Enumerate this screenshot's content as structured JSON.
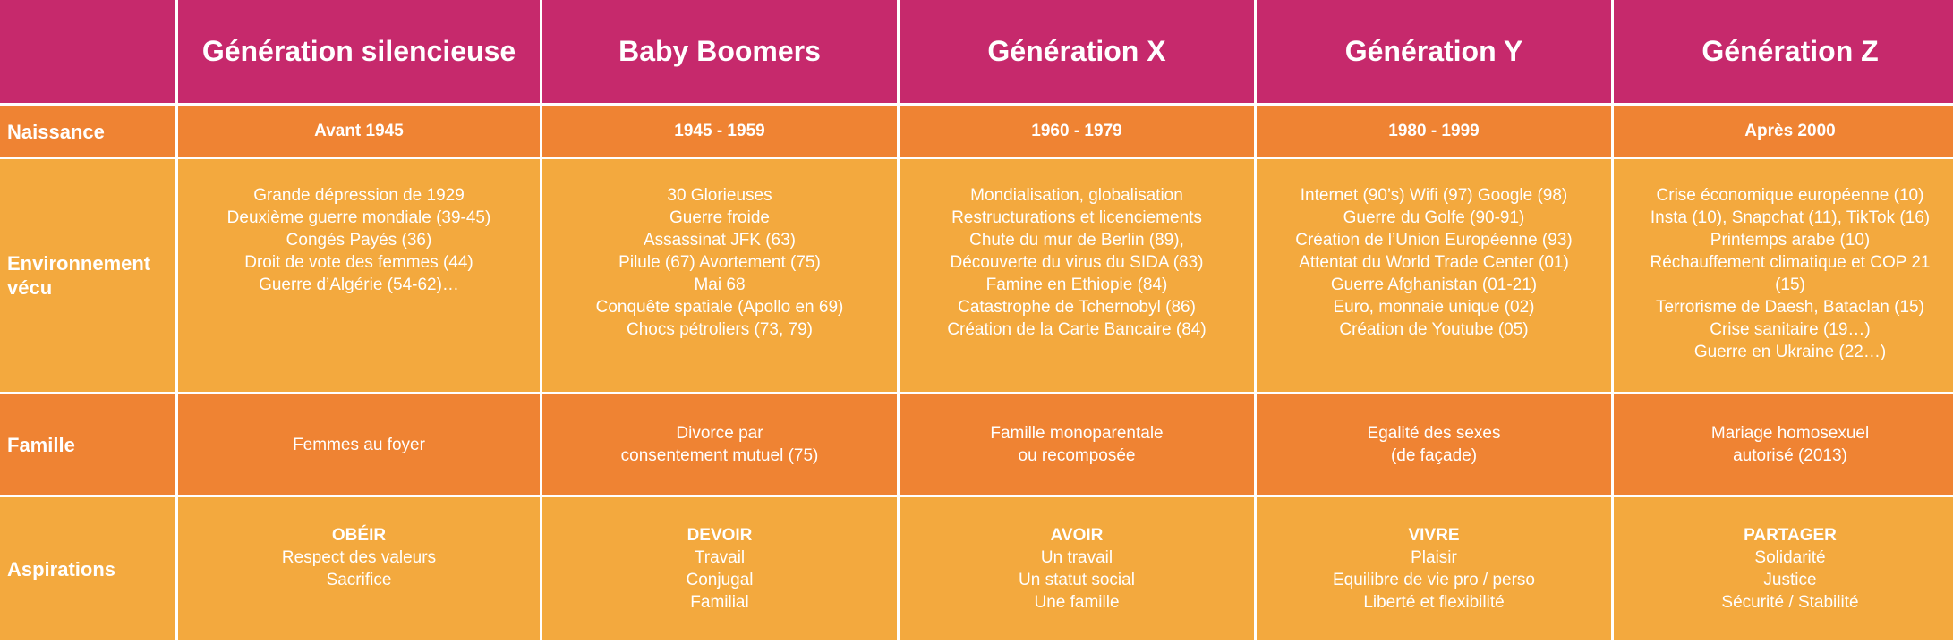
{
  "colors": {
    "header": "#c6296c",
    "dark_orange": "#ef8333",
    "light_orange": "#f3a93e",
    "text": "#ffffff"
  },
  "headers": [
    "Génération silencieuse",
    "Baby Boomers",
    "Génération X",
    "Génération Y",
    "Génération Z"
  ],
  "rows": {
    "naissance": {
      "label": "Naissance",
      "values": [
        "Avant 1945",
        "1945 - 1959",
        "1960 - 1979",
        "1980 - 1999",
        "Après 2000"
      ]
    },
    "environnement": {
      "label_lines": [
        "Environnement",
        "vécu"
      ],
      "values": [
        [
          "Grande dépression de 1929",
          "Deuxième guerre mondiale (39-45)",
          "Congés Payés (36)",
          "Droit de vote des femmes (44)",
          "Guerre d’Algérie (54-62)…"
        ],
        [
          "30 Glorieuses",
          "Guerre froide",
          "Assassinat JFK (63)",
          "Pilule (67) Avortement (75)",
          "Mai 68",
          "Conquête spatiale (Apollo en 69)",
          "Chocs pétroliers (73, 79)"
        ],
        [
          "Mondialisation, globalisation",
          "Restructurations et licenciements",
          "Chute du mur de Berlin (89),",
          "Découverte du virus du SIDA (83)",
          "Famine en Ethiopie (84)",
          "Catastrophe de Tchernobyl (86)",
          "Création de la Carte Bancaire (84)"
        ],
        [
          "Internet (90’s) Wifi (97) Google (98)",
          "Guerre du Golfe (90-91)",
          "Création de l’Union Européenne (93)",
          "Attentat du World Trade Center (01)",
          "Guerre Afghanistan (01-21)",
          "Euro, monnaie unique (02)",
          "Création de Youtube (05)"
        ],
        [
          "Crise économique européenne (10)",
          "Insta (10), Snapchat (11), TikTok (16)",
          "Printemps arabe (10)",
          "Réchauffement climatique et COP 21",
          "(15)",
          "Terrorisme de Daesh, Bataclan (15)",
          "Crise sanitaire (19…)",
          "Guerre en Ukraine (22…)"
        ]
      ]
    },
    "famille": {
      "label": "Famille",
      "values": [
        [
          "Femmes au foyer"
        ],
        [
          "Divorce par",
          "consentement mutuel (75)"
        ],
        [
          "Famille monoparentale",
          "ou recomposée"
        ],
        [
          "Egalité des sexes",
          "(de façade)"
        ],
        [
          "Mariage homosexuel",
          "autorisé (2013)"
        ]
      ]
    },
    "aspirations": {
      "label": "Aspirations",
      "values": [
        {
          "title": "OBÉIR",
          "lines": [
            "Respect des valeurs",
            "Sacrifice"
          ]
        },
        {
          "title": "DEVOIR",
          "lines": [
            "Travail",
            "Conjugal",
            "Familial"
          ]
        },
        {
          "title": "AVOIR",
          "lines": [
            "Un travail",
            "Un statut social",
            "Une famille"
          ]
        },
        {
          "title": "VIVRE",
          "lines": [
            "Plaisir",
            "Equilibre de vie pro / perso",
            "Liberté et flexibilité"
          ]
        },
        {
          "title": "PARTAGER",
          "lines": [
            "Solidarité",
            "Justice",
            "Sécurité / Stabilité"
          ]
        }
      ]
    }
  }
}
